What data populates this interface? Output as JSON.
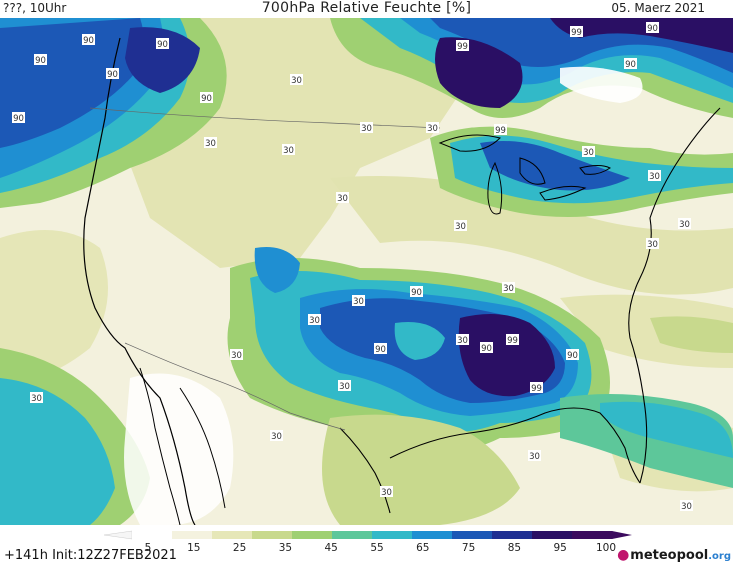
{
  "header": {
    "left": "???, 10Uhr",
    "title": "700hPa Relative Feuchte [%]",
    "date": "05. Maerz 2021"
  },
  "footer": {
    "run": "+141h Init:12Z27FEB2021",
    "brand": "meteopool.org",
    "brand_main": "meteopool",
    "brand_tld": ".org"
  },
  "legend": {
    "labels": [
      "5",
      "15",
      "25",
      "35",
      "45",
      "55",
      "65",
      "75",
      "85",
      "95",
      "100"
    ],
    "colors": [
      "#ffffff",
      "#f4f2df",
      "#e6e7b8",
      "#c8d98d",
      "#9fd072",
      "#5dc79a",
      "#32b9c8",
      "#1f8fd2",
      "#1c58b6",
      "#1f2f92",
      "#2a0f64",
      "#3b0a5e"
    ]
  },
  "map": {
    "contour_labels": [
      "90",
      "90",
      "90",
      "90",
      "90",
      "90",
      "99",
      "99",
      "90",
      "90",
      "99",
      "30",
      "30",
      "30",
      "30",
      "30",
      "30",
      "30",
      "30",
      "30",
      "30",
      "30",
      "30",
      "30",
      "30",
      "30",
      "30",
      "30",
      "30",
      "90",
      "90",
      "90",
      "99",
      "99",
      "90",
      "30",
      "30",
      "30",
      "30"
    ]
  }
}
